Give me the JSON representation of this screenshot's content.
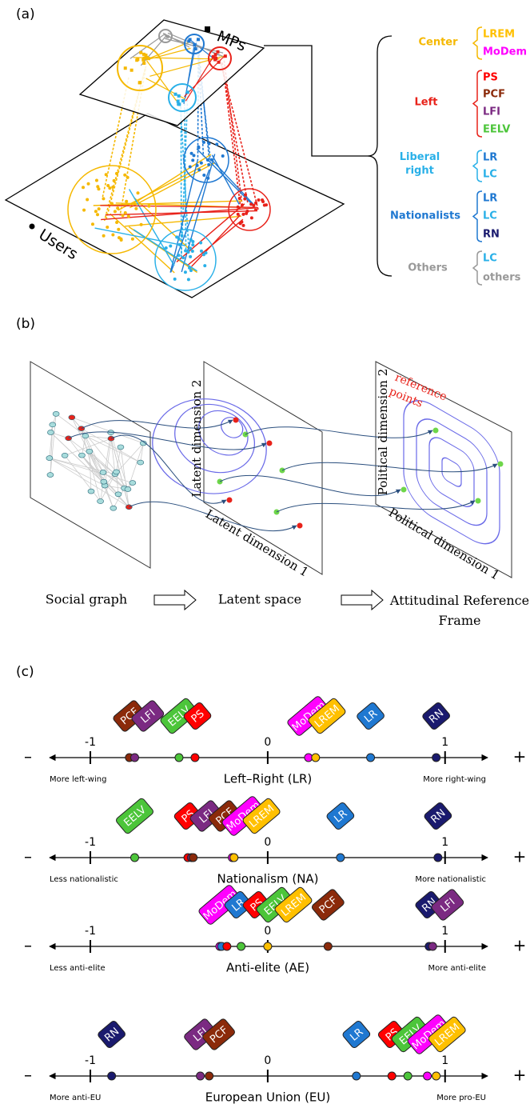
{
  "panel_a": {
    "label": "(a)",
    "mps": "MPs",
    "users": "Users",
    "groups": [
      {
        "name": "Center",
        "color": "#f5b800",
        "parties": [
          {
            "name": "LREM",
            "color": "#ffc000"
          },
          {
            "name": "MoDem",
            "color": "#ff00ff"
          }
        ]
      },
      {
        "name": "Left",
        "color": "#e8221a",
        "parties": [
          {
            "name": "PS",
            "color": "#ff0000"
          },
          {
            "name": "PCF",
            "color": "#8b2a0a"
          },
          {
            "name": "LFI",
            "color": "#7b2a82"
          },
          {
            "name": "EELV",
            "color": "#4cc53a"
          }
        ]
      },
      {
        "name": "Liberal right",
        "color": "#29b0e8",
        "parties": [
          {
            "name": "LR",
            "color": "#1f78d1"
          },
          {
            "name": "LC",
            "color": "#29b0e8"
          }
        ]
      },
      {
        "name": "Nationalists",
        "color": "#1f78d1",
        "parties": [
          {
            "name": "LR",
            "color": "#1f78d1"
          },
          {
            "name": "LC",
            "color": "#29b0e8"
          },
          {
            "name": "RN",
            "color": "#1a1a6e"
          }
        ]
      },
      {
        "name": "Others",
        "color": "#999999",
        "parties": [
          {
            "name": "LC",
            "color": "#29b0e8"
          },
          {
            "name": "others",
            "color": "#999999"
          }
        ]
      }
    ]
  },
  "panel_b": {
    "label": "(b)",
    "stages": [
      "Social graph",
      "Latent space",
      "Attitudinal Reference Frame"
    ],
    "latent_axes": [
      "Latent dimension 1",
      "Latent dimension 2"
    ],
    "political_axes": [
      "Political dimension 1",
      "Political dimension 2"
    ],
    "annotation": "reference points"
  },
  "panel_c": {
    "label": "(c)"
  },
  "chart_data": [
    {
      "type": "dot",
      "title": "Left–Right (LR)",
      "left_label": "More left-wing",
      "right_label": "More right-wing",
      "minus": "–",
      "plus": "+",
      "xlim": [
        -1.23,
        1.24
      ],
      "xticks": [
        -1,
        0,
        1
      ],
      "categories": [
        "PCF",
        "LFI",
        "EELV",
        "PS",
        "MoDem",
        "LREM",
        "LR",
        "RN"
      ],
      "values": [
        -0.78,
        -0.75,
        -0.5,
        -0.41,
        0.23,
        0.27,
        0.58,
        0.95
      ],
      "colors": [
        "#8b2a0a",
        "#7b2a82",
        "#4cc53a",
        "#ff0000",
        "#ff00ff",
        "#ffc000",
        "#1f78d1",
        "#1a1a6e"
      ]
    },
    {
      "type": "dot",
      "title": "Nationalism (NA)",
      "left_label": "Less nationalistic",
      "right_label": "More nationalistic",
      "minus": "–",
      "plus": "+",
      "xlim": [
        -1.23,
        1.24
      ],
      "xticks": [
        -1,
        0,
        1
      ],
      "categories": [
        "EELV",
        "PS",
        "LFI",
        "PCF",
        "MoDem",
        "LREM",
        "LR",
        "RN"
      ],
      "values": [
        -0.75,
        -0.45,
        -0.43,
        -0.42,
        -0.2,
        -0.19,
        0.41,
        0.96
      ],
      "colors": [
        "#4cc53a",
        "#ff0000",
        "#7b2a82",
        "#8b2a0a",
        "#ff00ff",
        "#ffc000",
        "#1f78d1",
        "#1a1a6e"
      ]
    },
    {
      "type": "dot",
      "title": "Anti-elite (AE)",
      "left_label": "Less anti-elite",
      "right_label": "More anti-elite",
      "minus": "–",
      "plus": "+",
      "xlim": [
        -1.23,
        1.24
      ],
      "xticks": [
        -1,
        0,
        1
      ],
      "categories": [
        "MoDem",
        "LR",
        "PS",
        "EELV",
        "LREM",
        "PCF",
        "RN",
        "LFI"
      ],
      "values": [
        -0.27,
        -0.26,
        -0.23,
        -0.15,
        0.0,
        0.34,
        0.91,
        0.93
      ],
      "colors": [
        "#ff00ff",
        "#1f78d1",
        "#ff0000",
        "#4cc53a",
        "#ffc000",
        "#8b2a0a",
        "#1a1a6e",
        "#7b2a82"
      ]
    },
    {
      "type": "dot",
      "title": "European Union (EU)",
      "left_label": "More anti-EU",
      "right_label": "More pro-EU",
      "minus": "–",
      "plus": "+",
      "xlim": [
        -1.23,
        1.24
      ],
      "xticks": [
        -1,
        0,
        1
      ],
      "categories": [
        "RN",
        "LFI",
        "PCF",
        "LR",
        "PS",
        "EELV",
        "MoDem",
        "LREM"
      ],
      "values": [
        -0.88,
        -0.38,
        -0.33,
        0.5,
        0.7,
        0.79,
        0.9,
        0.95
      ],
      "colors": [
        "#1a1a6e",
        "#7b2a82",
        "#8b2a0a",
        "#1f78d1",
        "#ff0000",
        "#4cc53a",
        "#ff00ff",
        "#ffc000"
      ]
    }
  ]
}
